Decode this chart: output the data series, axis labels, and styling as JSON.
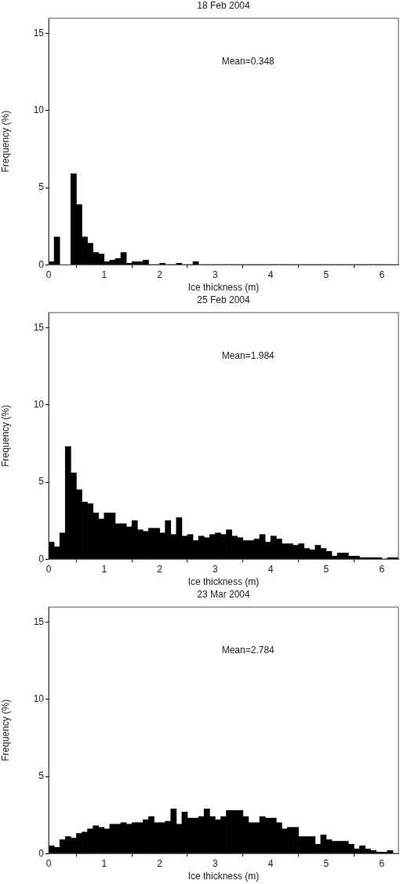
{
  "chart_data": [
    {
      "type": "histogram",
      "title": "18 Feb 2004",
      "xlabel": "Ice thickness (m)",
      "ylabel": "Frequency (%)",
      "color": "#000000",
      "bins": [
        0,
        0.1,
        0.2,
        0.3,
        0.4,
        0.5,
        0.6,
        0.7,
        0.8,
        0.9,
        1,
        1.1,
        1.2,
        1.3,
        1.4,
        1.5,
        1.6,
        1.7,
        1.8,
        1.9,
        2,
        2.1,
        2.2,
        2.3,
        2.4,
        2.5,
        2.6,
        2.7,
        2.8,
        2.9,
        3,
        3.1,
        3.2,
        3.3,
        3.4,
        3.5,
        3.6,
        3.7,
        3.8,
        3.9,
        4,
        4.1,
        4.2,
        4.3,
        4.4,
        4.5,
        4.6,
        4.7,
        4.8,
        4.9,
        5,
        5.1,
        5.2,
        5.3,
        5.4,
        5.5,
        5.6,
        5.7,
        5.8,
        5.9,
        6,
        6.1,
        6.2,
        6.3
      ],
      "values": [
        0.2,
        1.8,
        null,
        null,
        5.9,
        3.9,
        1.8,
        1.4,
        0.8,
        0.7,
        0.2,
        0.3,
        0.4,
        0.8,
        0.1,
        0.2,
        0.2,
        0.3,
        0,
        0,
        0.1,
        0,
        0,
        0.1,
        0,
        0,
        0.2,
        0,
        0,
        0,
        0,
        0,
        0,
        0,
        0,
        0,
        0,
        0,
        0,
        0,
        0,
        0,
        0,
        0,
        0,
        0,
        0,
        0,
        0,
        0,
        0,
        0,
        0,
        0,
        0,
        0,
        0,
        0,
        0,
        0,
        0,
        0,
        0
      ],
      "xlim": [
        0,
        6.3
      ],
      "xticks": [
        0,
        1,
        2,
        3,
        4,
        5,
        6
      ],
      "ylim": [
        0,
        16
      ],
      "yticks": [
        0,
        5,
        10,
        15
      ],
      "annotations": [
        "Mean=0.348"
      ]
    },
    {
      "type": "histogram",
      "title": "25 Feb 2004",
      "xlabel": "Ice thickness (m)",
      "ylabel": "Frequency (%)",
      "color": "#000000",
      "bins": [
        0,
        0.1,
        0.2,
        0.3,
        0.4,
        0.5,
        0.6,
        0.7,
        0.8,
        0.9,
        1,
        1.1,
        1.2,
        1.3,
        1.4,
        1.5,
        1.6,
        1.7,
        1.8,
        1.9,
        2,
        2.1,
        2.2,
        2.3,
        2.4,
        2.5,
        2.6,
        2.7,
        2.8,
        2.9,
        3,
        3.1,
        3.2,
        3.3,
        3.4,
        3.5,
        3.6,
        3.7,
        3.8,
        3.9,
        4,
        4.1,
        4.2,
        4.3,
        4.4,
        4.5,
        4.6,
        4.7,
        4.8,
        4.9,
        5,
        5.1,
        5.2,
        5.3,
        5.4,
        5.5,
        5.6,
        5.7,
        5.8,
        5.9,
        6,
        6.1,
        6.2,
        6.3
      ],
      "values": [
        1.1,
        0.8,
        1.7,
        7.3,
        5.6,
        4.5,
        3.7,
        3.6,
        3,
        2.6,
        3,
        3,
        2.3,
        2.3,
        2.1,
        2.5,
        1.9,
        1.8,
        2,
        2,
        1.7,
        2.5,
        1.6,
        2.7,
        1.5,
        1.6,
        1.2,
        1.5,
        1.4,
        1.6,
        1.7,
        1.6,
        1.9,
        1.5,
        1.4,
        1.2,
        1.2,
        1.3,
        1.6,
        1.1,
        1.5,
        1.3,
        1,
        1,
        0.9,
        1,
        0.7,
        0.6,
        0.9,
        0.7,
        0.5,
        0.2,
        0.4,
        0.4,
        0.2,
        0.2,
        0.1,
        0.1,
        0.1,
        0.1,
        0,
        0.1,
        0.1
      ],
      "xlim": [
        0,
        6.3
      ],
      "xticks": [
        0,
        1,
        2,
        3,
        4,
        5,
        6
      ],
      "ylim": [
        0,
        16
      ],
      "yticks": [
        0,
        5,
        10,
        15
      ],
      "annotations": [
        "Mean=1.984"
      ]
    },
    {
      "type": "histogram",
      "title": "23 Mar 2004",
      "xlabel": "Ice thickness (m)",
      "ylabel": "Frequency (%)",
      "color": "#000000",
      "bins": [
        0,
        0.1,
        0.2,
        0.3,
        0.4,
        0.5,
        0.6,
        0.7,
        0.8,
        0.9,
        1,
        1.1,
        1.2,
        1.3,
        1.4,
        1.5,
        1.6,
        1.7,
        1.8,
        1.9,
        2,
        2.1,
        2.2,
        2.3,
        2.4,
        2.5,
        2.6,
        2.7,
        2.8,
        2.9,
        3,
        3.1,
        3.2,
        3.3,
        3.4,
        3.5,
        3.6,
        3.7,
        3.8,
        3.9,
        4,
        4.1,
        4.2,
        4.3,
        4.4,
        4.5,
        4.6,
        4.7,
        4.8,
        4.9,
        5,
        5.1,
        5.2,
        5.3,
        5.4,
        5.5,
        5.6,
        5.7,
        5.8,
        5.9,
        6,
        6.1,
        6.2,
        6.3
      ],
      "values": [
        0.5,
        0.4,
        0.9,
        1.1,
        1,
        1.3,
        1.4,
        1.6,
        1.8,
        1.7,
        1.6,
        1.9,
        1.9,
        2,
        1.9,
        2,
        2,
        2.2,
        2.4,
        2,
        2,
        2.1,
        2.9,
        1.9,
        2.7,
        2.3,
        2.3,
        2.4,
        2.9,
        2.4,
        2.2,
        2.4,
        2.8,
        2.8,
        2.8,
        2.4,
        2,
        2,
        2.4,
        2.3,
        2.3,
        2,
        1.6,
        1.7,
        1.7,
        1.1,
        1.1,
        1.1,
        0.6,
        1.2,
        0.9,
        0.8,
        0.8,
        0.8,
        0.6,
        0.3,
        0.5,
        0.3,
        0.2,
        0.1,
        0.1,
        0.2,
        0
      ],
      "xlim": [
        0,
        6.3
      ],
      "xticks": [
        0,
        1,
        2,
        3,
        4,
        5,
        6
      ],
      "ylim": [
        0,
        16
      ],
      "yticks": [
        0,
        5,
        10,
        15
      ],
      "annotations": [
        "Mean=2.784"
      ]
    }
  ]
}
